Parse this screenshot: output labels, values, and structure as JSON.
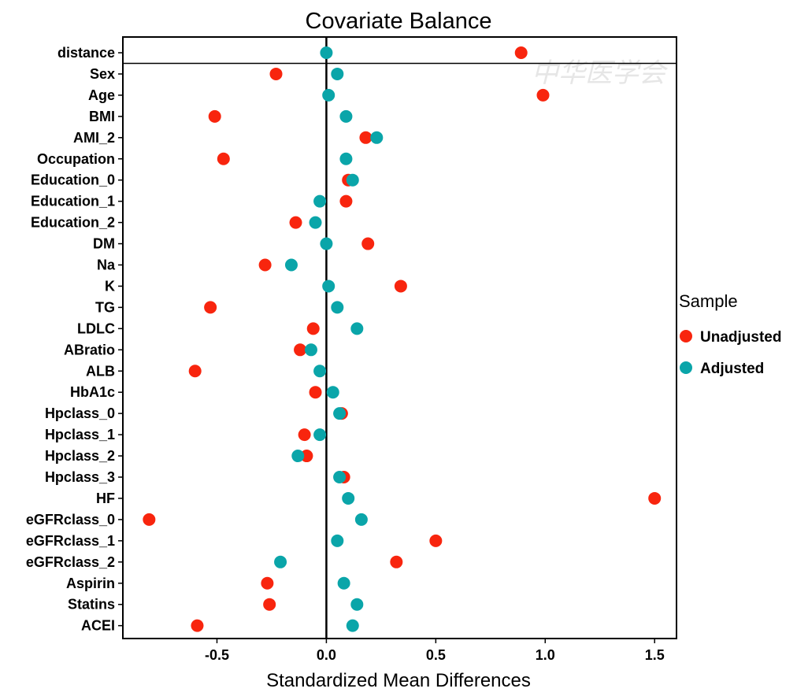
{
  "watermark_text": "中华医学会",
  "chart_data": {
    "type": "scatter",
    "title": "Covariate Balance",
    "xlabel": "Standardized Mean Differences",
    "xlim": [
      -0.93,
      1.6
    ],
    "xticks": [
      -0.5,
      0.0,
      0.5,
      1.0,
      1.5
    ],
    "xtick_labels": [
      "-0.5",
      "0.0",
      "0.5",
      "1.0",
      "1.5"
    ],
    "reference_line": 0,
    "legend": {
      "title": "Sample",
      "placement": "right",
      "entries": [
        "Unadjusted",
        "Adjusted"
      ]
    },
    "categories": [
      "distance",
      "Sex",
      "Age",
      "BMI",
      "AMI_2",
      "Occupation",
      "Education_0",
      "Education_1",
      "Education_2",
      "DM",
      "Na",
      "K",
      "TG",
      "LDLC",
      "ABratio",
      "ALB",
      "HbA1c",
      "Hpclass_0",
      "Hpclass_1",
      "Hpclass_2",
      "Hpclass_3",
      "HF",
      "eGFRclass_0",
      "eGFRclass_1",
      "eGFRclass_2",
      "Aspirin",
      "Statins",
      "ACEI"
    ],
    "series": [
      {
        "name": "Unadjusted",
        "color": "#f8250e",
        "values": [
          0.89,
          -0.23,
          0.99,
          -0.51,
          0.18,
          -0.47,
          0.1,
          0.09,
          -0.14,
          0.19,
          -0.28,
          0.34,
          -0.53,
          -0.06,
          -0.12,
          -0.6,
          -0.05,
          0.07,
          -0.1,
          -0.09,
          0.08,
          1.5,
          -0.81,
          0.5,
          0.32,
          -0.27,
          -0.26,
          -0.59
        ]
      },
      {
        "name": "Adjusted",
        "color": "#0aa5a9",
        "values": [
          0.0,
          0.05,
          0.01,
          0.09,
          0.23,
          0.09,
          0.12,
          -0.03,
          -0.05,
          0.0,
          -0.16,
          0.01,
          0.05,
          0.14,
          -0.07,
          -0.03,
          0.03,
          0.06,
          -0.03,
          -0.13,
          0.06,
          0.1,
          0.16,
          0.05,
          -0.21,
          0.08,
          0.14,
          0.12
        ]
      }
    ]
  }
}
